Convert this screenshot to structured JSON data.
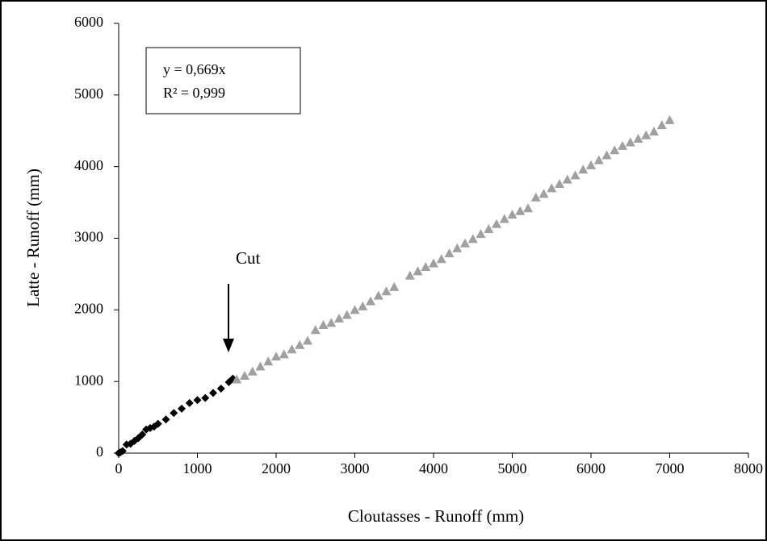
{
  "chart_data": {
    "type": "scatter",
    "xlabel": "Cloutasses - Runoff (mm)",
    "ylabel": "Latte - Runoff (mm)",
    "annotations": {
      "equation": "y = 0,669x",
      "r2": "R² = 0,999",
      "cut": "Cut"
    },
    "xlim": [
      0,
      8000
    ],
    "ylim": [
      0,
      6000
    ],
    "xticks": [
      0,
      1000,
      2000,
      3000,
      4000,
      5000,
      6000,
      7000,
      8000
    ],
    "yticks": [
      0,
      1000,
      2000,
      3000,
      4000,
      5000,
      6000
    ],
    "grid": false,
    "series": [
      {
        "color": "#000000",
        "marker": "diamond",
        "x": [
          0,
          20,
          50,
          100,
          150,
          200,
          250,
          300,
          350,
          400,
          450,
          500,
          600,
          700,
          800,
          900,
          1000,
          1100,
          1200,
          1300,
          1400,
          1450
        ],
        "values": [
          0,
          10,
          30,
          120,
          130,
          170,
          210,
          260,
          330,
          350,
          370,
          410,
          470,
          560,
          620,
          700,
          740,
          770,
          840,
          900,
          990,
          1040
        ]
      },
      {
        "color": "#a0a0a0",
        "marker": "triangle",
        "x": [
          1500,
          1600,
          1700,
          1800,
          1900,
          2000,
          2100,
          2200,
          2300,
          2400,
          2500,
          2600,
          2700,
          2800,
          2900,
          3000,
          3100,
          3200,
          3300,
          3400,
          3500,
          3700,
          3800,
          3900,
          4000,
          4100,
          4200,
          4300,
          4400,
          4500,
          4600,
          4700,
          4800,
          4900,
          5000,
          5100,
          5200,
          5300,
          5400,
          5500,
          5600,
          5700,
          5800,
          5900,
          6000,
          6100,
          6200,
          6300,
          6400,
          6500,
          6600,
          6700,
          6800,
          6900,
          7000
        ],
        "values": [
          1030,
          1080,
          1140,
          1210,
          1280,
          1350,
          1380,
          1450,
          1510,
          1570,
          1720,
          1790,
          1820,
          1880,
          1930,
          2000,
          2050,
          2120,
          2200,
          2260,
          2320,
          2480,
          2540,
          2600,
          2650,
          2710,
          2790,
          2860,
          2930,
          2990,
          3060,
          3130,
          3200,
          3270,
          3330,
          3380,
          3420,
          3570,
          3620,
          3700,
          3760,
          3820,
          3880,
          3960,
          4020,
          4090,
          4160,
          4230,
          4290,
          4340,
          4390,
          4440,
          4490,
          4580,
          4650
        ]
      }
    ]
  }
}
